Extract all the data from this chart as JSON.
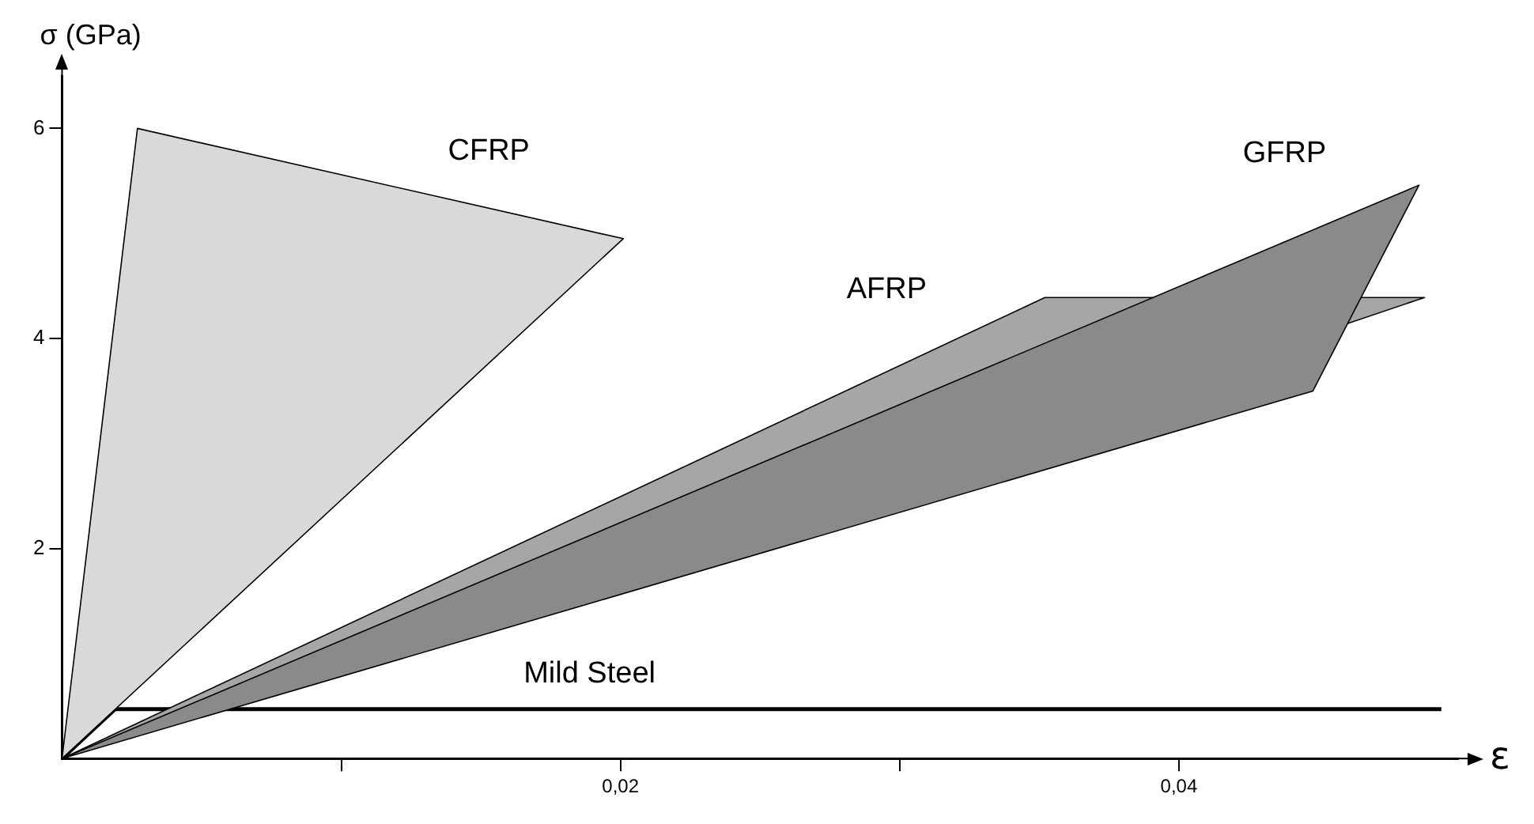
{
  "chart_data": {
    "type": "area",
    "xlabel": "ε",
    "ylabel": "σ (GPa)",
    "xlim": [
      0,
      0.05
    ],
    "ylim": [
      0,
      6.5
    ],
    "xticks": [
      {
        "value": 0.01,
        "label": null
      },
      {
        "value": 0.02,
        "label": "0,02"
      },
      {
        "value": 0.03,
        "label": null
      },
      {
        "value": 0.04,
        "label": "0,04"
      }
    ],
    "yticks": [
      2,
      4,
      6
    ],
    "series": [
      {
        "name": "CFRP",
        "type": "area",
        "color": "#d9d9d9",
        "x": [
          0,
          0.0027,
          0.0201,
          0
        ],
        "values": [
          0,
          6.0,
          4.95,
          0
        ]
      },
      {
        "name": "GFRP",
        "type": "area",
        "color": "#8a8a8a",
        "x": [
          0,
          0.0486,
          0.0448,
          0
        ],
        "values": [
          0,
          5.46,
          3.5,
          0
        ]
      },
      {
        "name": "AFRP",
        "type": "area",
        "color": "#a6a6a6",
        "x": [
          0,
          0.0352,
          0.0488,
          0
        ],
        "values": [
          0,
          4.39,
          4.39,
          0
        ]
      },
      {
        "name": "Mild Steel",
        "type": "line",
        "color": "#000000",
        "x": [
          0,
          0.0019,
          0.0494
        ],
        "values": [
          0,
          0.47,
          0.47
        ]
      }
    ]
  }
}
